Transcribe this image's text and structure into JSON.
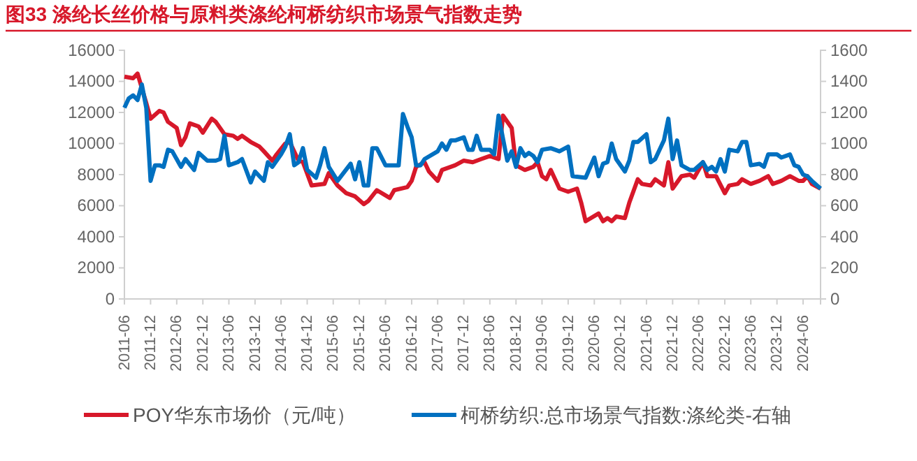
{
  "chart_data": {
    "type": "line",
    "title": "图33  涤纶长丝价格与原料类涤纶柯桥纺织市场景气指数走势",
    "ylim": [
      0,
      16000
    ],
    "yticks": [
      0,
      2000,
      4000,
      6000,
      8000,
      10000,
      12000,
      14000,
      16000
    ],
    "y2lim": [
      0,
      1600
    ],
    "y2ticks": [
      0,
      200,
      400,
      600,
      800,
      1000,
      1200,
      1400,
      1600
    ],
    "xlim": [
      "2011-06",
      "2024-10"
    ],
    "xticks": [
      "2011-06",
      "2011-12",
      "2012-06",
      "2012-12",
      "2013-06",
      "2013-12",
      "2014-06",
      "2014-12",
      "2015-06",
      "2015-12",
      "2016-06",
      "2016-12",
      "2017-06",
      "2017-12",
      "2018-06",
      "2018-12",
      "2019-06",
      "2019-12",
      "2020-06",
      "2020-12",
      "2021-06",
      "2021-12",
      "2022-06",
      "2022-12",
      "2023-06",
      "2023-12",
      "2024-06"
    ],
    "grid": false,
    "legend": "bottom",
    "marker": "none",
    "line_style": "solid",
    "series": [
      {
        "name": "POY华东市场价（元/吨）",
        "color": "#d7182a",
        "x": [
          "2011-06",
          "2011-08",
          "2011-09",
          "2011-11",
          "2011-12",
          "2012-02",
          "2012-03",
          "2012-04",
          "2012-06",
          "2012-07",
          "2012-08",
          "2012-09",
          "2012-11",
          "2012-12",
          "2013-02",
          "2013-03",
          "2013-05",
          "2013-07",
          "2013-08",
          "2013-09",
          "2013-11",
          "2014-01",
          "2014-02",
          "2014-04",
          "2014-05",
          "2014-07",
          "2014-08",
          "2014-10",
          "2014-11",
          "2015-01",
          "2015-04",
          "2015-05",
          "2015-07",
          "2015-09",
          "2015-11",
          "2016-01",
          "2016-02",
          "2016-04",
          "2016-07",
          "2016-08",
          "2016-11",
          "2016-12",
          "2017-01",
          "2017-03",
          "2017-04",
          "2017-06",
          "2017-07",
          "2017-10",
          "2017-12",
          "2018-02",
          "2018-04",
          "2018-06",
          "2018-08",
          "2018-09",
          "2018-11",
          "2018-12",
          "2019-02",
          "2019-04",
          "2019-05",
          "2019-06",
          "2019-07",
          "2019-08",
          "2019-09",
          "2019-10",
          "2019-12",
          "2020-02",
          "2020-03",
          "2020-04",
          "2020-07",
          "2020-08",
          "2020-09",
          "2020-10",
          "2020-11",
          "2021-01",
          "2021-02",
          "2021-04",
          "2021-05",
          "2021-07",
          "2021-08",
          "2021-10",
          "2021-11",
          "2021-12",
          "2022-02",
          "2022-04",
          "2022-05",
          "2022-07",
          "2022-08",
          "2022-10",
          "2022-12",
          "2023-01",
          "2023-03",
          "2023-04",
          "2023-06",
          "2023-08",
          "2023-10",
          "2023-11",
          "2024-01",
          "2024-03",
          "2024-05",
          "2024-06",
          "2024-07",
          "2024-08",
          "2024-10"
        ],
        "values": [
          14300,
          14200,
          14500,
          12600,
          11600,
          12100,
          12000,
          11400,
          11000,
          9900,
          10400,
          11300,
          11100,
          10700,
          11600,
          11400,
          10600,
          10500,
          10300,
          10500,
          10100,
          9800,
          9500,
          8900,
          9300,
          10000,
          10100,
          8900,
          8800,
          7300,
          7400,
          8100,
          7300,
          6800,
          6600,
          6100,
          6300,
          7000,
          6500,
          7000,
          7200,
          7600,
          8500,
          8800,
          8200,
          7600,
          8300,
          8600,
          8900,
          8800,
          9000,
          9200,
          9000,
          11800,
          11000,
          8600,
          8300,
          8500,
          8800,
          7900,
          7700,
          8300,
          7700,
          7100,
          6900,
          7100,
          6200,
          5000,
          5500,
          5000,
          5200,
          5000,
          5300,
          5200,
          6200,
          7700,
          7400,
          7300,
          7700,
          7300,
          8800,
          7100,
          7900,
          8000,
          7800,
          8800,
          7900,
          7900,
          6800,
          7300,
          7400,
          7700,
          7400,
          7600,
          7900,
          7400,
          7600,
          7900,
          7600,
          7600,
          7900,
          7400,
          7100
        ]
      },
      {
        "name": "柯桥纺织:总市场景气指数:涤纶类-右轴",
        "color": "#0070c0",
        "axis": "y2",
        "x": [
          "2011-06",
          "2011-07",
          "2011-08",
          "2011-09",
          "2011-10",
          "2011-11",
          "2011-12",
          "2012-01",
          "2012-02",
          "2012-03",
          "2012-04",
          "2012-05",
          "2012-07",
          "2012-08",
          "2012-10",
          "2012-11",
          "2013-01",
          "2013-03",
          "2013-04",
          "2013-05",
          "2013-06",
          "2013-08",
          "2013-09",
          "2013-11",
          "2013-12",
          "2014-01",
          "2014-02",
          "2014-03",
          "2014-04",
          "2014-06",
          "2014-07",
          "2014-08",
          "2014-09",
          "2014-10",
          "2014-11",
          "2014-12",
          "2015-02",
          "2015-03",
          "2015-04",
          "2015-05",
          "2015-07",
          "2015-10",
          "2015-11",
          "2015-12",
          "2016-01",
          "2016-02",
          "2016-03",
          "2016-04",
          "2016-06",
          "2016-09",
          "2016-10",
          "2016-11",
          "2016-12",
          "2017-01",
          "2017-02",
          "2017-03",
          "2017-06",
          "2017-07",
          "2017-08",
          "2017-09",
          "2017-10",
          "2017-12",
          "2018-01",
          "2018-02",
          "2018-03",
          "2018-04",
          "2018-06",
          "2018-07",
          "2018-08",
          "2018-10",
          "2018-11",
          "2018-12",
          "2019-01",
          "2019-02",
          "2019-03",
          "2019-04",
          "2019-05",
          "2019-06",
          "2019-08",
          "2019-10",
          "2019-12",
          "2020-01",
          "2020-04",
          "2020-06",
          "2020-07",
          "2020-08",
          "2020-09",
          "2020-10",
          "2020-11",
          "2021-01",
          "2021-02",
          "2021-03",
          "2021-04",
          "2021-06",
          "2021-07",
          "2021-08",
          "2021-10",
          "2021-11",
          "2021-12",
          "2022-01",
          "2022-02",
          "2022-04",
          "2022-05",
          "2022-07",
          "2022-08",
          "2022-09",
          "2022-10",
          "2022-11",
          "2022-12",
          "2023-01",
          "2023-03",
          "2023-04",
          "2023-05",
          "2023-06",
          "2023-08",
          "2023-09",
          "2023-10",
          "2023-12",
          "2024-01",
          "2024-03",
          "2024-04",
          "2024-05",
          "2024-06",
          "2024-07",
          "2024-08",
          "2024-10"
        ],
        "values": [
          1230,
          1290,
          1310,
          1280,
          1380,
          1230,
          760,
          860,
          860,
          850,
          960,
          950,
          850,
          900,
          830,
          940,
          890,
          890,
          900,
          1050,
          860,
          880,
          900,
          750,
          820,
          790,
          760,
          880,
          850,
          930,
          980,
          1060,
          860,
          880,
          970,
          830,
          780,
          860,
          970,
          850,
          760,
          870,
          770,
          880,
          730,
          730,
          970,
          970,
          860,
          860,
          1190,
          1110,
          1040,
          860,
          860,
          900,
          950,
          1000,
          960,
          1020,
          1020,
          1040,
          960,
          960,
          1050,
          960,
          960,
          930,
          1180,
          890,
          950,
          850,
          970,
          920,
          940,
          920,
          880,
          960,
          970,
          950,
          980,
          790,
          780,
          910,
          790,
          870,
          880,
          1000,
          900,
          820,
          890,
          1010,
          1010,
          1060,
          880,
          900,
          1020,
          1160,
          900,
          1020,
          860,
          830,
          830,
          880,
          830,
          850,
          820,
          900,
          820,
          960,
          950,
          1010,
          1010,
          860,
          870,
          850,
          930,
          930,
          910,
          930,
          860,
          850,
          800,
          790,
          760,
          710
        ]
      }
    ]
  }
}
